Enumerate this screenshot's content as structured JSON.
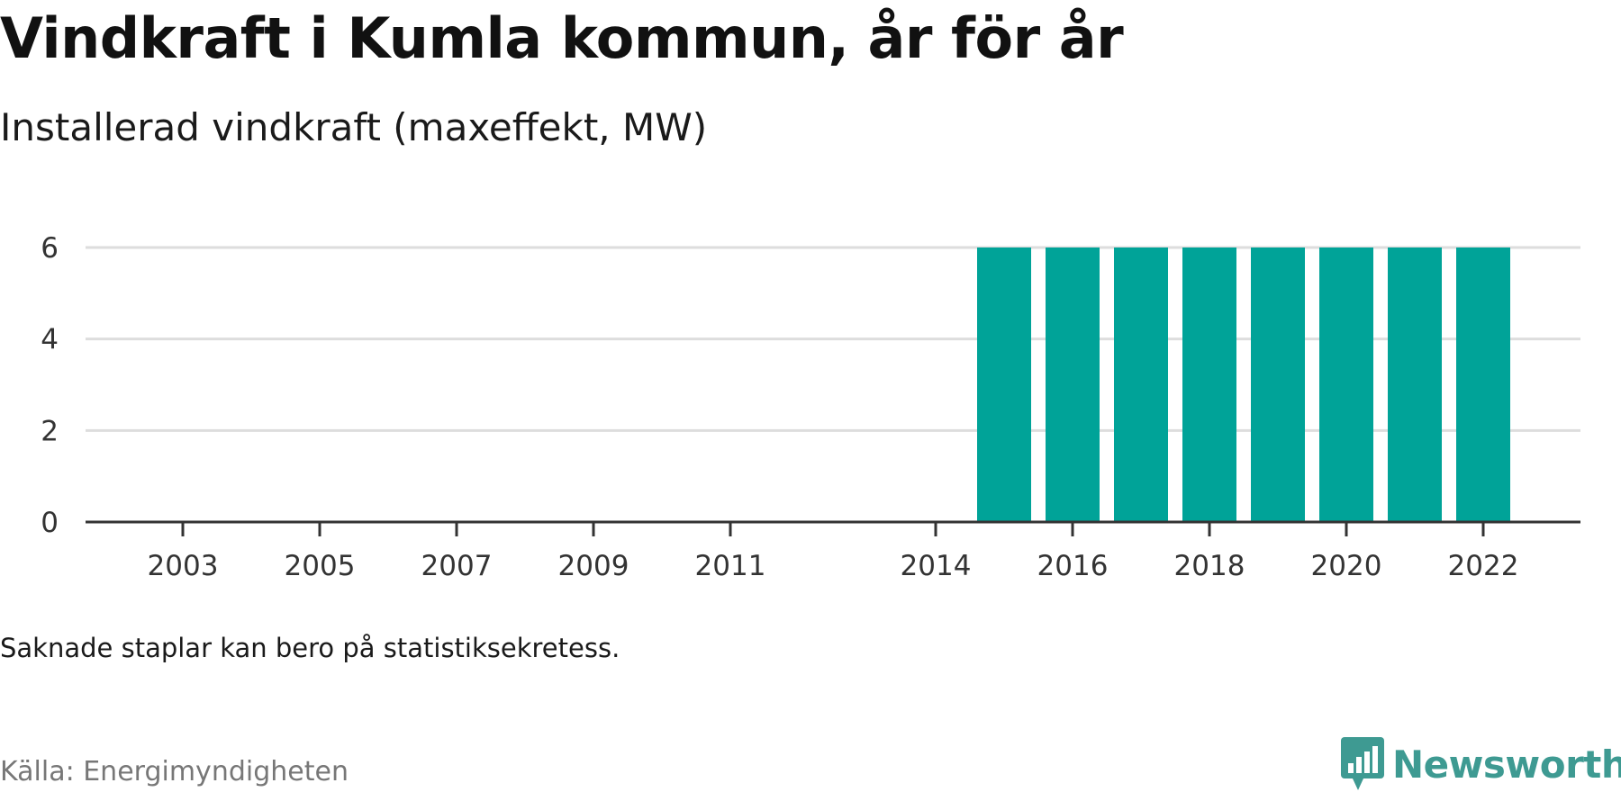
{
  "header": {
    "title": "Vindkraft i Kumla kommun, år för år",
    "subtitle": "Installerad vindkraft (maxeffekt, MW)"
  },
  "footer": {
    "note": "Saknade staplar kan bero på statistiksekretess.",
    "source": "Källa: Energimyndigheten",
    "brand": "Newsworthy",
    "brand_color": "#3e9a92"
  },
  "chart_data": {
    "type": "bar",
    "categories": [
      "2003",
      "2004",
      "2005",
      "2006",
      "2007",
      "2008",
      "2009",
      "2010",
      "2011",
      "2014",
      "2015",
      "2016",
      "2017",
      "2018",
      "2019",
      "2020",
      "2021",
      "2022"
    ],
    "values": [
      0,
      0,
      0,
      0,
      0,
      0,
      0,
      0,
      0,
      0,
      6,
      6,
      6,
      6,
      6,
      6,
      6,
      6
    ],
    "x_tick_labels": [
      "2003",
      "2005",
      "2007",
      "2009",
      "2011",
      "2014",
      "2016",
      "2018",
      "2020",
      "2022"
    ],
    "y_ticks": [
      0,
      2,
      4,
      6
    ],
    "ylim": [
      0,
      6
    ],
    "grid": true,
    "bar_color": "#00a398",
    "title": "Vindkraft i Kumla kommun, år för år",
    "subtitle": "Installerad vindkraft (maxeffekt, MW)",
    "xlabel": "",
    "ylabel": ""
  }
}
